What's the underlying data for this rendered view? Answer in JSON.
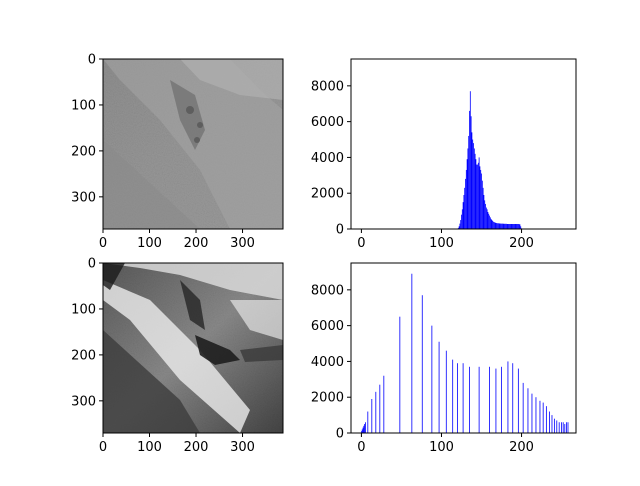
{
  "chart_data": [
    {
      "id": "original-image",
      "type": "image",
      "xlim": [
        0,
        387
      ],
      "ylim": [
        370,
        0
      ],
      "xticks": [
        0,
        100,
        200,
        300
      ],
      "yticks": [
        0,
        100,
        200,
        300
      ],
      "tick_labels_x": [
        "0",
        "100",
        "200",
        "300"
      ],
      "tick_labels_y": [
        "0",
        "100",
        "200",
        "300"
      ]
    },
    {
      "id": "original-histogram",
      "type": "bar",
      "color": "#0000ff",
      "xlim": [
        -13,
        268
      ],
      "ylim": [
        0,
        9500
      ],
      "xticks": [
        0,
        100,
        200
      ],
      "yticks": [
        0,
        2000,
        4000,
        6000,
        8000
      ],
      "tick_labels_x": [
        "0",
        "100",
        "200"
      ],
      "tick_labels_y": [
        "0",
        "2000",
        "4000",
        "6000",
        "8000"
      ],
      "x": [
        120,
        121,
        122,
        123,
        124,
        125,
        126,
        127,
        128,
        129,
        130,
        131,
        132,
        133,
        134,
        135,
        136,
        137,
        138,
        139,
        140,
        141,
        142,
        143,
        144,
        145,
        146,
        147,
        148,
        149,
        150,
        151,
        152,
        153,
        154,
        155,
        156,
        157,
        158,
        159,
        160,
        161,
        162,
        163,
        164,
        165,
        166,
        167,
        168,
        169,
        170,
        171,
        172,
        173,
        174,
        175,
        176,
        177,
        178,
        179,
        180,
        181,
        182,
        183,
        184,
        185,
        186,
        187,
        188,
        189,
        190,
        191,
        192,
        193,
        194,
        195,
        196,
        197,
        198,
        199,
        200
      ],
      "values": [
        10,
        60,
        150,
        300,
        500,
        800,
        1100,
        1500,
        1900,
        2300,
        2800,
        3300,
        3900,
        4500,
        5200,
        6600,
        7700,
        6300,
        5400,
        5000,
        4800,
        4500,
        4200,
        3900,
        3600,
        3600,
        3700,
        4000,
        3500,
        3300,
        3100,
        2700,
        2300,
        1900,
        1600,
        1400,
        1200,
        1100,
        950,
        850,
        750,
        650,
        560,
        500,
        450,
        400,
        380,
        360,
        340,
        330,
        320,
        320,
        310,
        310,
        300,
        300,
        300,
        300,
        290,
        290,
        290,
        290,
        280,
        280,
        280,
        280,
        280,
        280,
        280,
        280,
        280,
        280,
        280,
        280,
        280,
        280,
        280,
        270,
        260,
        150,
        40
      ]
    },
    {
      "id": "equalized-image",
      "type": "image",
      "xlim": [
        0,
        387
      ],
      "ylim": [
        370,
        0
      ],
      "xticks": [
        0,
        100,
        200,
        300
      ],
      "yticks": [
        0,
        100,
        200,
        300
      ],
      "tick_labels_x": [
        "0",
        "100",
        "200",
        "300"
      ],
      "tick_labels_y": [
        "0",
        "100",
        "200",
        "300"
      ]
    },
    {
      "id": "equalized-histogram",
      "type": "bar",
      "color": "#0000ff",
      "xlim": [
        -13,
        268
      ],
      "ylim": [
        0,
        9500
      ],
      "xticks": [
        0,
        100,
        200
      ],
      "yticks": [
        0,
        2000,
        4000,
        6000,
        8000
      ],
      "tick_labels_x": [
        "0",
        "100",
        "200"
      ],
      "tick_labels_y": [
        "0",
        "2000",
        "4000",
        "6000",
        "8000"
      ],
      "x": [
        0,
        1,
        2,
        3,
        4,
        5,
        8,
        13,
        18,
        23,
        28,
        48,
        63,
        76,
        88,
        97,
        106,
        114,
        120,
        127,
        135,
        147,
        160,
        168,
        175,
        183,
        189,
        196,
        202,
        208,
        213,
        218,
        223,
        227,
        231,
        235,
        238,
        241,
        244,
        247,
        250,
        252,
        254,
        256,
        258
      ],
      "values": [
        100,
        200,
        300,
        400,
        500,
        600,
        1200,
        1900,
        2300,
        2700,
        3200,
        6500,
        8900,
        7700,
        6000,
        5100,
        4600,
        4100,
        3900,
        3900,
        3700,
        3700,
        3700,
        3600,
        3700,
        4000,
        3900,
        3600,
        2800,
        2500,
        2200,
        2000,
        1800,
        1700,
        1500,
        1200,
        1000,
        800,
        700,
        600,
        600,
        600,
        500,
        600,
        600
      ]
    }
  ]
}
